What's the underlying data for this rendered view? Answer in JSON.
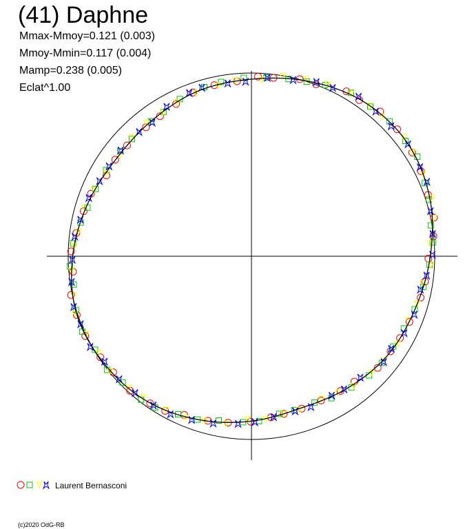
{
  "header": {
    "title": "(41) Daphne",
    "stats": [
      "Mmax-Mmoy=0.121 (0.003)",
      "Mmoy-Mmin=0.117 (0.004)",
      "Mamp=0.238 (0.005)",
      "Eclat^1.00"
    ]
  },
  "legend": {
    "observer": "Laurent Bernasconi",
    "marker_icons": [
      "circle-icon",
      "square-icon",
      "triangle-icon",
      "star-icon"
    ],
    "marker_colors": [
      "#ff0000",
      "#00cc00",
      "#ffff00",
      "#0000ff"
    ]
  },
  "copyright": "(c)2020 OdG-RB",
  "chart_data": {
    "type": "scatter",
    "projection": "polar",
    "description_of_axes": "angle = rotational phase, radius = brightness (flux^1.00)",
    "reference_circle": 1.0,
    "fit_curve": {
      "phase": [
        0.0,
        0.05,
        0.1,
        0.15,
        0.2,
        0.25,
        0.3,
        0.35,
        0.4,
        0.45,
        0.5,
        0.55,
        0.6,
        0.65,
        0.7,
        0.75,
        0.8,
        0.85,
        0.9,
        0.95
      ],
      "radius": [
        1.02,
        1.06,
        1.1,
        1.11,
        1.08,
        1.03,
        0.99,
        0.97,
        0.94,
        0.92,
        0.95,
        0.99,
        1.03,
        1.05,
        1.06,
        1.03,
        0.99,
        0.96,
        0.97,
        1.0
      ]
    },
    "series": [
      {
        "marker": "circle",
        "color": "#ff0000",
        "phase_start": 0.003,
        "count": 52
      },
      {
        "marker": "square",
        "color": "#00cc00",
        "phase_start": 0.011,
        "count": 52
      },
      {
        "marker": "triangle",
        "color": "#ffff00",
        "phase_start": 0.007,
        "count": 52
      },
      {
        "marker": "star",
        "color": "#0000ff",
        "phase_start": 0.015,
        "count": 52
      }
    ]
  }
}
